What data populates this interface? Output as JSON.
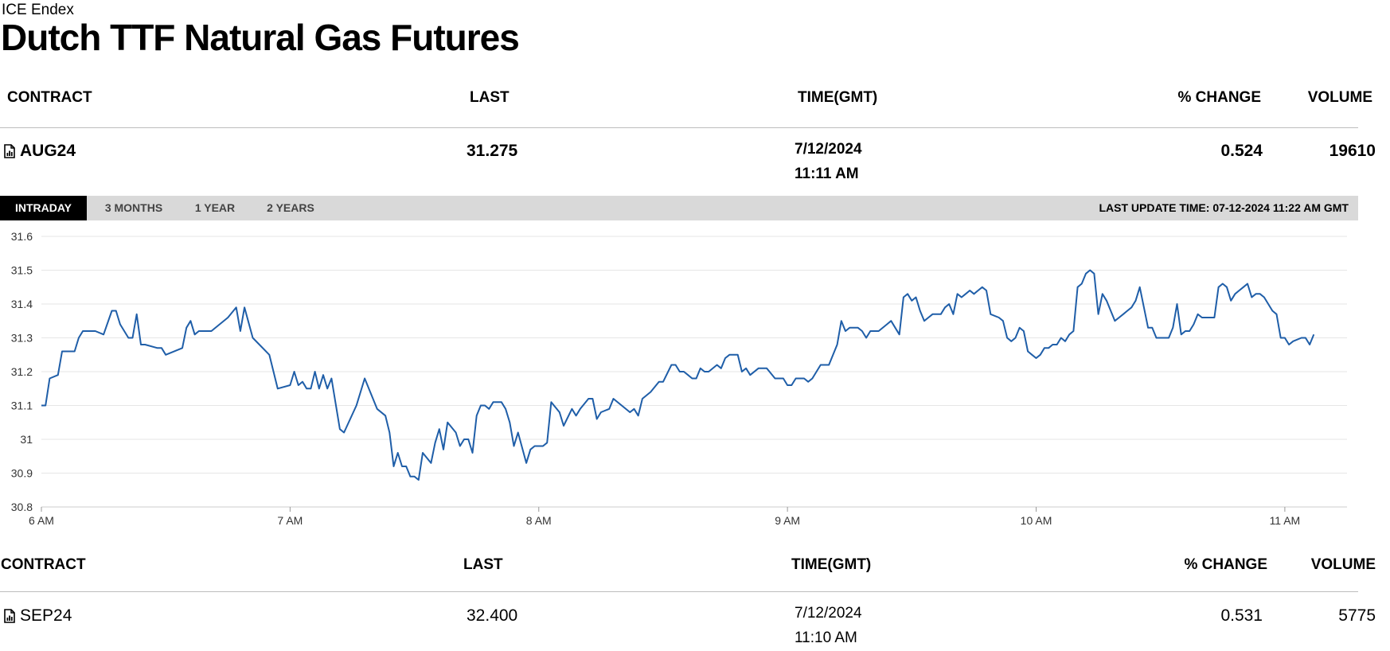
{
  "page": {
    "exchange": "ICE Endex",
    "title": "Dutch TTF Natural Gas Futures"
  },
  "table_headers": {
    "contract": "CONTRACT",
    "last": "LAST",
    "time": "TIME(GMT)",
    "change": "% CHANGE",
    "volume": "VOLUME"
  },
  "rows": [
    {
      "contract": "AUG24",
      "last": "31.275",
      "date": "7/12/2024",
      "time": "11:11 AM",
      "change": "0.524",
      "volume": "19610",
      "icon": "document-chart-icon"
    },
    {
      "contract": "SEP24",
      "last": "32.400",
      "date": "7/12/2024",
      "time": "11:10 AM",
      "change": "0.531",
      "volume": "5775",
      "icon": "document-chart-icon"
    }
  ],
  "tabs": [
    "INTRADAY",
    "3 MONTHS",
    "1 YEAR",
    "2 YEARS"
  ],
  "active_tab": "INTRADAY",
  "last_update": "LAST UPDATE TIME: 07-12-2024 11:22 AM GMT",
  "colors": {
    "line": "#1f5ea8",
    "active_tab_bg": "#000000",
    "tabbar_bg": "#d9d9d9",
    "grid": "#e6e6e6"
  },
  "chart_data": {
    "type": "line",
    "title": "",
    "xlabel": "",
    "ylabel": "",
    "ylim": [
      30.8,
      31.6
    ],
    "yticks": [
      "31.6",
      "31.5",
      "31.4",
      "31.3",
      "31.2",
      "31.1",
      "31",
      "30.9",
      "30.8"
    ],
    "xticks": [
      "6 AM",
      "7 AM",
      "8 AM",
      "9 AM",
      "10 AM",
      "11 AM"
    ],
    "xlim": [
      "06:00",
      "11:15"
    ],
    "grid": true,
    "series": [
      {
        "values": [
          [
            "06:00",
            31.1
          ],
          [
            "06:01",
            31.1
          ],
          [
            "06:02",
            31.18
          ],
          [
            "06:04",
            31.19
          ],
          [
            "06:05",
            31.26
          ],
          [
            "06:08",
            31.26
          ],
          [
            "06:09",
            31.3
          ],
          [
            "06:10",
            31.32
          ],
          [
            "06:12",
            31.32
          ],
          [
            "06:13",
            31.32
          ],
          [
            "06:15",
            31.31
          ],
          [
            "06:17",
            31.38
          ],
          [
            "06:18",
            31.38
          ],
          [
            "06:19",
            31.34
          ],
          [
            "06:21",
            31.3
          ],
          [
            "06:22",
            31.3
          ],
          [
            "06:23",
            31.37
          ],
          [
            "06:24",
            31.28
          ],
          [
            "06:25",
            31.28
          ],
          [
            "06:28",
            31.27
          ],
          [
            "06:29",
            31.27
          ],
          [
            "06:30",
            31.25
          ],
          [
            "06:34",
            31.27
          ],
          [
            "06:35",
            31.33
          ],
          [
            "06:36",
            31.35
          ],
          [
            "06:37",
            31.31
          ],
          [
            "06:38",
            31.32
          ],
          [
            "06:41",
            31.32
          ],
          [
            "06:45",
            31.36
          ],
          [
            "06:47",
            31.39
          ],
          [
            "06:48",
            31.32
          ],
          [
            "06:49",
            31.39
          ],
          [
            "06:51",
            31.3
          ],
          [
            "06:55",
            31.25
          ],
          [
            "06:57",
            31.15
          ],
          [
            "07:00",
            31.16
          ],
          [
            "07:01",
            31.2
          ],
          [
            "07:02",
            31.16
          ],
          [
            "07:03",
            31.17
          ],
          [
            "07:04",
            31.15
          ],
          [
            "07:05",
            31.15
          ],
          [
            "07:06",
            31.2
          ],
          [
            "07:07",
            31.15
          ],
          [
            "07:08",
            31.19
          ],
          [
            "07:09",
            31.15
          ],
          [
            "07:10",
            31.18
          ],
          [
            "07:12",
            31.03
          ],
          [
            "07:13",
            31.02
          ],
          [
            "07:16",
            31.1
          ],
          [
            "07:18",
            31.18
          ],
          [
            "07:20",
            31.12
          ],
          [
            "07:21",
            31.09
          ],
          [
            "07:23",
            31.07
          ],
          [
            "07:24",
            31.02
          ],
          [
            "07:25",
            30.92
          ],
          [
            "07:26",
            30.96
          ],
          [
            "07:27",
            30.92
          ],
          [
            "07:28",
            30.92
          ],
          [
            "07:29",
            30.89
          ],
          [
            "07:30",
            30.89
          ],
          [
            "07:31",
            30.88
          ],
          [
            "07:32",
            30.96
          ],
          [
            "07:34",
            30.93
          ],
          [
            "07:35",
            30.99
          ],
          [
            "07:36",
            31.03
          ],
          [
            "07:37",
            30.97
          ],
          [
            "07:38",
            31.05
          ],
          [
            "07:40",
            31.02
          ],
          [
            "07:41",
            30.98
          ],
          [
            "07:42",
            31.0
          ],
          [
            "07:43",
            31.0
          ],
          [
            "07:44",
            30.96
          ],
          [
            "07:45",
            31.07
          ],
          [
            "07:46",
            31.1
          ],
          [
            "07:47",
            31.1
          ],
          [
            "07:48",
            31.09
          ],
          [
            "07:49",
            31.11
          ],
          [
            "07:51",
            31.11
          ],
          [
            "07:52",
            31.09
          ],
          [
            "07:53",
            31.05
          ],
          [
            "07:54",
            30.98
          ],
          [
            "07:55",
            31.02
          ],
          [
            "07:57",
            30.93
          ],
          [
            "07:58",
            30.97
          ],
          [
            "07:59",
            30.98
          ],
          [
            "08:01",
            30.98
          ],
          [
            "08:02",
            30.99
          ],
          [
            "08:03",
            31.11
          ],
          [
            "08:05",
            31.08
          ],
          [
            "08:06",
            31.04
          ],
          [
            "08:08",
            31.09
          ],
          [
            "08:09",
            31.07
          ],
          [
            "08:10",
            31.09
          ],
          [
            "08:12",
            31.12
          ],
          [
            "08:13",
            31.12
          ],
          [
            "08:14",
            31.06
          ],
          [
            "08:15",
            31.08
          ],
          [
            "08:17",
            31.09
          ],
          [
            "08:18",
            31.12
          ],
          [
            "08:20",
            31.1
          ],
          [
            "08:22",
            31.08
          ],
          [
            "08:23",
            31.09
          ],
          [
            "08:24",
            31.07
          ],
          [
            "08:25",
            31.12
          ],
          [
            "08:27",
            31.14
          ],
          [
            "08:29",
            31.17
          ],
          [
            "08:30",
            31.17
          ],
          [
            "08:32",
            31.22
          ],
          [
            "08:33",
            31.22
          ],
          [
            "08:34",
            31.2
          ],
          [
            "08:35",
            31.2
          ],
          [
            "08:36",
            31.19
          ],
          [
            "08:37",
            31.18
          ],
          [
            "08:38",
            31.18
          ],
          [
            "08:39",
            31.21
          ],
          [
            "08:40",
            31.2
          ],
          [
            "08:41",
            31.2
          ],
          [
            "08:43",
            31.22
          ],
          [
            "08:44",
            31.21
          ],
          [
            "08:45",
            31.24
          ],
          [
            "08:46",
            31.25
          ],
          [
            "08:48",
            31.25
          ],
          [
            "08:49",
            31.2
          ],
          [
            "08:50",
            31.21
          ],
          [
            "08:51",
            31.19
          ],
          [
            "08:53",
            31.21
          ],
          [
            "08:55",
            31.21
          ],
          [
            "08:57",
            31.18
          ],
          [
            "08:59",
            31.18
          ],
          [
            "09:00",
            31.16
          ],
          [
            "09:01",
            31.16
          ],
          [
            "09:02",
            31.18
          ],
          [
            "09:04",
            31.18
          ],
          [
            "09:05",
            31.17
          ],
          [
            "09:06",
            31.18
          ],
          [
            "09:07",
            31.2
          ],
          [
            "09:08",
            31.22
          ],
          [
            "09:10",
            31.22
          ],
          [
            "09:12",
            31.28
          ],
          [
            "09:13",
            31.35
          ],
          [
            "09:14",
            31.32
          ],
          [
            "09:15",
            31.33
          ],
          [
            "09:17",
            31.33
          ],
          [
            "09:18",
            31.32
          ],
          [
            "09:19",
            31.3
          ],
          [
            "09:20",
            31.32
          ],
          [
            "09:22",
            31.32
          ],
          [
            "09:24",
            31.34
          ],
          [
            "09:25",
            31.35
          ],
          [
            "09:26",
            31.33
          ],
          [
            "09:27",
            31.31
          ],
          [
            "09:28",
            31.42
          ],
          [
            "09:29",
            31.43
          ],
          [
            "09:30",
            31.41
          ],
          [
            "09:31",
            31.42
          ],
          [
            "09:32",
            31.38
          ],
          [
            "09:33",
            31.35
          ],
          [
            "09:34",
            31.36
          ],
          [
            "09:35",
            31.37
          ],
          [
            "09:37",
            31.37
          ],
          [
            "09:38",
            31.39
          ],
          [
            "09:39",
            31.4
          ],
          [
            "09:40",
            31.37
          ],
          [
            "09:41",
            31.43
          ],
          [
            "09:42",
            31.42
          ],
          [
            "09:43",
            31.43
          ],
          [
            "09:44",
            31.44
          ],
          [
            "09:45",
            31.43
          ],
          [
            "09:46",
            31.44
          ],
          [
            "09:47",
            31.45
          ],
          [
            "09:48",
            31.44
          ],
          [
            "09:49",
            31.37
          ],
          [
            "09:51",
            31.36
          ],
          [
            "09:52",
            31.35
          ],
          [
            "09:53",
            31.3
          ],
          [
            "09:54",
            31.29
          ],
          [
            "09:55",
            31.3
          ],
          [
            "09:56",
            31.33
          ],
          [
            "09:57",
            31.32
          ],
          [
            "09:58",
            31.26
          ],
          [
            "09:59",
            31.25
          ],
          [
            "10:00",
            31.24
          ],
          [
            "10:01",
            31.25
          ],
          [
            "10:02",
            31.27
          ],
          [
            "10:03",
            31.27
          ],
          [
            "10:04",
            31.28
          ],
          [
            "10:05",
            31.28
          ],
          [
            "10:06",
            31.3
          ],
          [
            "10:07",
            31.29
          ],
          [
            "10:08",
            31.31
          ],
          [
            "10:09",
            31.32
          ],
          [
            "10:10",
            31.45
          ],
          [
            "10:11",
            31.46
          ],
          [
            "10:12",
            31.49
          ],
          [
            "10:13",
            31.5
          ],
          [
            "10:14",
            31.49
          ],
          [
            "10:15",
            31.37
          ],
          [
            "10:16",
            31.43
          ],
          [
            "10:17",
            31.41
          ],
          [
            "10:18",
            31.38
          ],
          [
            "10:19",
            31.35
          ],
          [
            "10:20",
            31.36
          ],
          [
            "10:21",
            31.37
          ],
          [
            "10:22",
            31.38
          ],
          [
            "10:23",
            31.39
          ],
          [
            "10:24",
            31.41
          ],
          [
            "10:25",
            31.45
          ],
          [
            "10:26",
            31.39
          ],
          [
            "10:27",
            31.33
          ],
          [
            "10:28",
            31.33
          ],
          [
            "10:29",
            31.3
          ],
          [
            "10:31",
            31.3
          ],
          [
            "10:32",
            31.3
          ],
          [
            "10:33",
            31.33
          ],
          [
            "10:34",
            31.4
          ],
          [
            "10:35",
            31.31
          ],
          [
            "10:36",
            31.32
          ],
          [
            "10:37",
            31.32
          ],
          [
            "10:38",
            31.34
          ],
          [
            "10:39",
            31.37
          ],
          [
            "10:40",
            31.36
          ],
          [
            "10:41",
            31.36
          ],
          [
            "10:42",
            31.36
          ],
          [
            "10:43",
            31.36
          ],
          [
            "10:44",
            31.45
          ],
          [
            "10:45",
            31.46
          ],
          [
            "10:46",
            31.45
          ],
          [
            "10:47",
            31.41
          ],
          [
            "10:48",
            31.43
          ],
          [
            "10:49",
            31.44
          ],
          [
            "10:50",
            31.45
          ],
          [
            "10:51",
            31.46
          ],
          [
            "10:52",
            31.42
          ],
          [
            "10:53",
            31.43
          ],
          [
            "10:54",
            31.43
          ],
          [
            "10:55",
            31.42
          ],
          [
            "10:56",
            31.4
          ],
          [
            "10:57",
            31.38
          ],
          [
            "10:58",
            31.37
          ],
          [
            "10:59",
            31.3
          ],
          [
            "11:00",
            31.3
          ],
          [
            "11:01",
            31.28
          ],
          [
            "11:02",
            31.29
          ],
          [
            "11:04",
            31.3
          ],
          [
            "11:05",
            31.3
          ],
          [
            "11:06",
            31.28
          ],
          [
            "11:07",
            31.31
          ]
        ]
      }
    ]
  }
}
